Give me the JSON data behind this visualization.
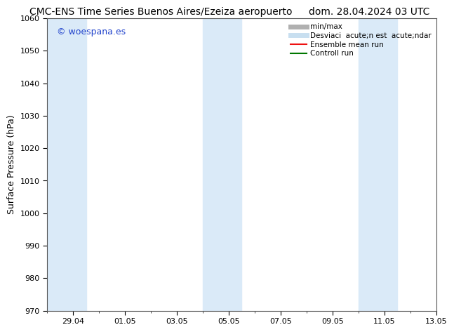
{
  "title": "CMC-ENS Time Series Buenos Aires/Ezeiza aeropuerto",
  "date_label": "dom. 28.04.2024 03 UTC",
  "ylabel": "Surface Pressure (hPa)",
  "ylim": [
    970,
    1060
  ],
  "yticks": [
    970,
    980,
    990,
    1000,
    1010,
    1020,
    1030,
    1040,
    1050,
    1060
  ],
  "xmin": 0,
  "xmax": 15,
  "xtick_positions": [
    1,
    3,
    5,
    7,
    9,
    11,
    13,
    15
  ],
  "xtick_labels": [
    "29.04",
    "01.05",
    "03.05",
    "05.05",
    "07.05",
    "09.05",
    "11.05",
    "13.05"
  ],
  "watermark": "© woespana.es",
  "bg_color": "#ffffff",
  "plot_bg_color": "#ffffff",
  "shaded_bands": [
    {
      "xstart": 0,
      "xend": 1.5
    },
    {
      "xstart": 6,
      "xend": 7.5
    },
    {
      "xstart": 12,
      "xend": 13.5
    }
  ],
  "shaded_color": "#daeaf8",
  "legend_entries": [
    {
      "label": "min/max",
      "color": "#b0b0b0",
      "lw": 5
    },
    {
      "label": "Desviaci  acute;n est  acute;ndar",
      "color": "#c8dff0",
      "lw": 5
    },
    {
      "label": "Ensemble mean run",
      "color": "#ee1111",
      "lw": 1.5
    },
    {
      "label": "Controll run",
      "color": "#007700",
      "lw": 1.5
    }
  ],
  "title_fontsize": 10,
  "date_fontsize": 10,
  "watermark_color": "#2244cc",
  "watermark_fontsize": 9,
  "tick_fontsize": 8,
  "ylabel_fontsize": 9,
  "legend_fontsize": 7.5
}
